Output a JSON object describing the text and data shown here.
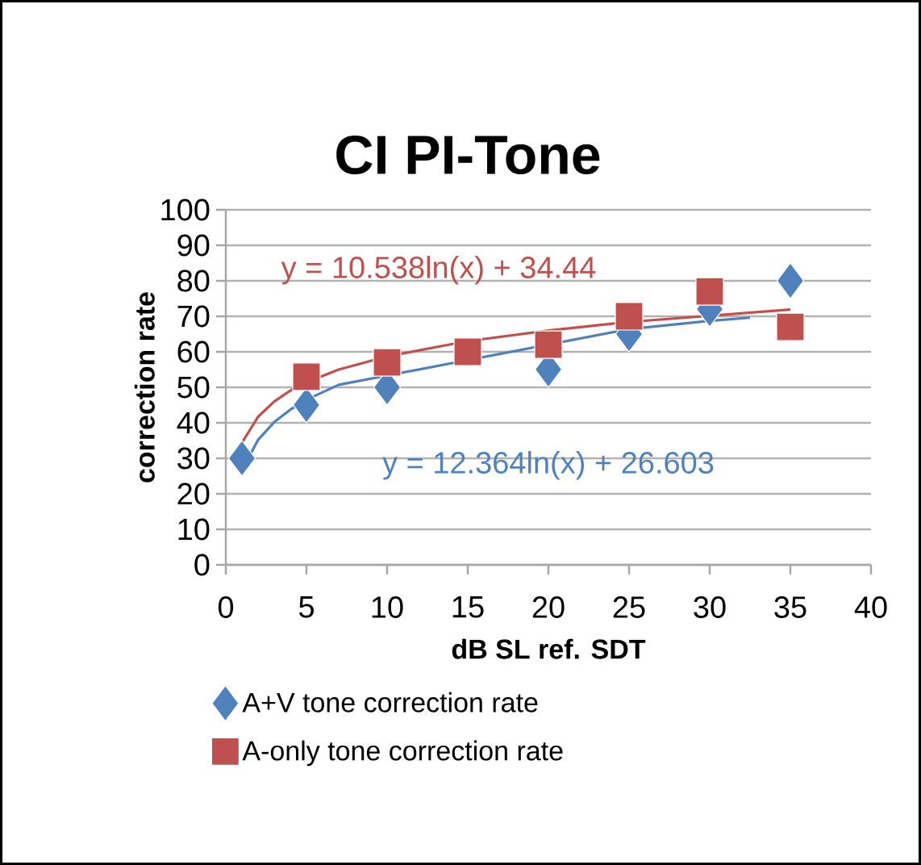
{
  "chart_data": {
    "type": "scatter",
    "title": "CI PI-Tone",
    "xlabel": "dB SL ref. SDT",
    "ylabel": "correction rate",
    "x": [
      1,
      5,
      10,
      15,
      20,
      25,
      30,
      35
    ],
    "series": [
      {
        "name": "A+V tone correction rate",
        "color": "#4f81bd",
        "marker": "diamond",
        "values": [
          30,
          45,
          50,
          null,
          55,
          65,
          72,
          80
        ]
      },
      {
        "name": "A-only tone correction rate",
        "color": "#c0504d",
        "marker": "square",
        "values": [
          null,
          53,
          57,
          60,
          62,
          70,
          77,
          67
        ]
      },
      {
        "type": "line",
        "color": "#c0504d",
        "marker": "none",
        "x": [
          1,
          2,
          3,
          4,
          5,
          7,
          10,
          15,
          20,
          25,
          35
        ],
        "values": [
          34.4,
          41.7,
          46.0,
          49.1,
          51.4,
          55.0,
          58.7,
          63.0,
          66.0,
          68.4,
          71.9
        ]
      },
      {
        "type": "line",
        "color": "#4f81bd",
        "marker": "none",
        "x": [
          1,
          2,
          3,
          4,
          5,
          7,
          25,
          30,
          32.5
        ],
        "values": [
          26.6,
          35.2,
          40.2,
          43.7,
          46.5,
          50.7,
          66.4,
          68.7,
          69.6
        ]
      }
    ],
    "annotations": [
      "y = 10.538ln(x) + 34.44",
      "y = 12.364ln(x) + 26.603"
    ],
    "xlim": [
      0,
      40
    ],
    "xticks": [
      0,
      5,
      10,
      15,
      20,
      25,
      30,
      35,
      40
    ],
    "ylim": [
      0,
      100
    ],
    "yticks": [
      0,
      10,
      20,
      30,
      40,
      50,
      60,
      70,
      80,
      90,
      100
    ],
    "grid": "y",
    "legend": "bottom"
  }
}
